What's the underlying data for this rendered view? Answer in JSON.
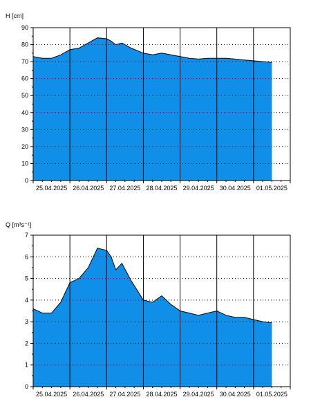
{
  "colors": {
    "fill": "#0f8fe8",
    "line": "#000000",
    "background": "#ffffff",
    "grid": "#000000"
  },
  "chart_data": [
    {
      "type": "area",
      "ylabel": "H [cm]",
      "ylim": [
        0,
        90
      ],
      "yticks": [
        0,
        10,
        20,
        30,
        40,
        50,
        60,
        70,
        80,
        90
      ],
      "xlim": [
        "2025-04-25 00:00",
        "2025-05-02 00:00"
      ],
      "xtick_labels": [
        "25.04.2025",
        "26.04.2025",
        "27.04.2025",
        "28.04.2025",
        "29.04.2025",
        "30.04.2025",
        "01.05.2025"
      ],
      "grid": {
        "vertical": "solid",
        "horizontal": "dotted"
      },
      "series": [
        {
          "values": [
            [
              "2025-04-25 00:00",
              73
            ],
            [
              "2025-04-25 06:00",
              72
            ],
            [
              "2025-04-25 12:00",
              72
            ],
            [
              "2025-04-25 18:00",
              74
            ],
            [
              "2025-04-26 00:00",
              77
            ],
            [
              "2025-04-26 06:00",
              78
            ],
            [
              "2025-04-26 12:00",
              81
            ],
            [
              "2025-04-26 18:00",
              84
            ],
            [
              "2025-04-27 00:00",
              83.5
            ],
            [
              "2025-04-27 03:00",
              82
            ],
            [
              "2025-04-27 06:00",
              80
            ],
            [
              "2025-04-27 10:00",
              81
            ],
            [
              "2025-04-27 16:00",
              78
            ],
            [
              "2025-04-28 00:00",
              75
            ],
            [
              "2025-04-28 06:00",
              74
            ],
            [
              "2025-04-28 12:00",
              75
            ],
            [
              "2025-04-28 18:00",
              74
            ],
            [
              "2025-04-29 00:00",
              73
            ],
            [
              "2025-04-29 06:00",
              72
            ],
            [
              "2025-04-29 12:00",
              71.5
            ],
            [
              "2025-04-29 18:00",
              72
            ],
            [
              "2025-04-30 00:00",
              72
            ],
            [
              "2025-04-30 06:00",
              72
            ],
            [
              "2025-04-30 12:00",
              71.5
            ],
            [
              "2025-04-30 18:00",
              71
            ],
            [
              "2025-05-01 00:00",
              70.5
            ],
            [
              "2025-05-01 06:00",
              70
            ],
            [
              "2025-05-01 12:00",
              69.5
            ]
          ]
        }
      ]
    },
    {
      "type": "area",
      "ylabel": "Q [m³s⁻¹]",
      "ylim": [
        0,
        7
      ],
      "yticks": [
        0,
        1,
        2,
        3,
        4,
        5,
        6,
        7
      ],
      "xlim": [
        "2025-04-25 00:00",
        "2025-05-02 00:00"
      ],
      "xtick_labels": [
        "25.04.2025",
        "26.04.2025",
        "27.04.2025",
        "28.04.2025",
        "29.04.2025",
        "30.04.2025",
        "01.05.2025"
      ],
      "grid": {
        "vertical": "solid",
        "horizontal": "dotted"
      },
      "series": [
        {
          "values": [
            [
              "2025-04-25 00:00",
              3.6
            ],
            [
              "2025-04-25 06:00",
              3.4
            ],
            [
              "2025-04-25 12:00",
              3.4
            ],
            [
              "2025-04-25 18:00",
              3.9
            ],
            [
              "2025-04-26 00:00",
              4.8
            ],
            [
              "2025-04-26 06:00",
              5.0
            ],
            [
              "2025-04-26 12:00",
              5.5
            ],
            [
              "2025-04-26 18:00",
              6.4
            ],
            [
              "2025-04-27 00:00",
              6.3
            ],
            [
              "2025-04-27 03:00",
              6.0
            ],
            [
              "2025-04-27 06:00",
              5.4
            ],
            [
              "2025-04-27 10:00",
              5.7
            ],
            [
              "2025-04-27 16:00",
              4.9
            ],
            [
              "2025-04-28 00:00",
              4.0
            ],
            [
              "2025-04-28 06:00",
              3.9
            ],
            [
              "2025-04-28 12:00",
              4.2
            ],
            [
              "2025-04-28 18:00",
              3.8
            ],
            [
              "2025-04-29 00:00",
              3.5
            ],
            [
              "2025-04-29 06:00",
              3.4
            ],
            [
              "2025-04-29 12:00",
              3.3
            ],
            [
              "2025-04-29 18:00",
              3.4
            ],
            [
              "2025-04-30 00:00",
              3.5
            ],
            [
              "2025-04-30 06:00",
              3.3
            ],
            [
              "2025-04-30 12:00",
              3.2
            ],
            [
              "2025-04-30 18:00",
              3.2
            ],
            [
              "2025-05-01 00:00",
              3.1
            ],
            [
              "2025-05-01 06:00",
              3.0
            ],
            [
              "2025-05-01 12:00",
              2.95
            ]
          ]
        }
      ]
    }
  ]
}
